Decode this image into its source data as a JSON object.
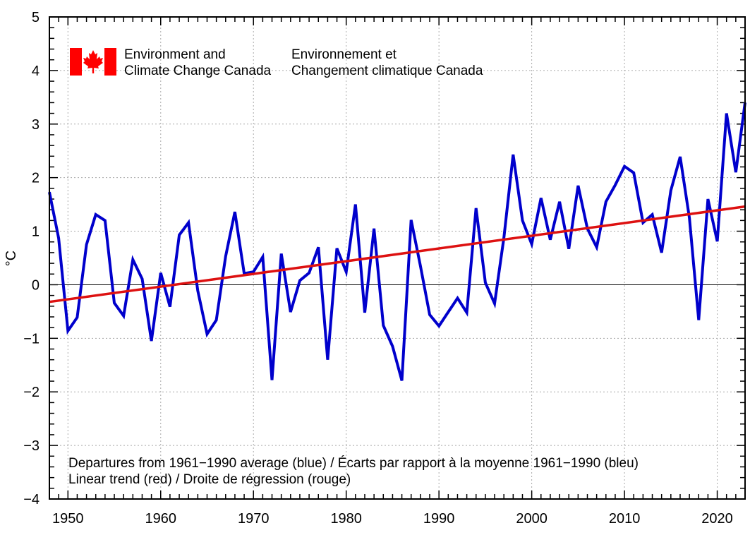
{
  "chart_data": {
    "type": "line",
    "title": "",
    "xlabel": "",
    "ylabel": "°C",
    "xlim": [
      1948,
      2023
    ],
    "ylim": [
      -4,
      5
    ],
    "x_ticks": [
      1950,
      1960,
      1970,
      1980,
      1990,
      2000,
      2010,
      2020
    ],
    "x_tick_labels": [
      "1950",
      "1960",
      "1970",
      "1980",
      "1990",
      "2000",
      "2010",
      "2020"
    ],
    "y_ticks": [
      -4,
      -3,
      -2,
      -1,
      0,
      1,
      2,
      3,
      4,
      5
    ],
    "y_tick_labels": [
      "−4",
      "−3",
      "−2",
      "−1",
      "0",
      "1",
      "2",
      "3",
      "4",
      "5"
    ],
    "grid": true,
    "zero_line": true,
    "series": [
      {
        "name": "Departures from 1961−1990 average",
        "color": "#0000cc",
        "x": [
          1948,
          1949,
          1950,
          1951,
          1952,
          1953,
          1954,
          1955,
          1956,
          1957,
          1958,
          1959,
          1960,
          1961,
          1962,
          1963,
          1964,
          1965,
          1966,
          1967,
          1968,
          1969,
          1970,
          1971,
          1972,
          1973,
          1974,
          1975,
          1976,
          1977,
          1978,
          1979,
          1980,
          1981,
          1982,
          1983,
          1984,
          1985,
          1986,
          1987,
          1988,
          1989,
          1990,
          1991,
          1992,
          1993,
          1994,
          1995,
          1996,
          1997,
          1998,
          1999,
          2000,
          2001,
          2002,
          2003,
          2004,
          2005,
          2006,
          2007,
          2008,
          2009,
          2010,
          2011,
          2012,
          2013,
          2014,
          2015,
          2016,
          2017,
          2018,
          2019,
          2020,
          2021,
          2022,
          2023
        ],
        "values": [
          1.73,
          0.87,
          -0.86,
          -0.61,
          0.75,
          1.31,
          1.2,
          -0.34,
          -0.58,
          0.47,
          0.11,
          -1.05,
          0.22,
          -0.41,
          0.93,
          1.16,
          -0.11,
          -0.92,
          -0.66,
          0.53,
          1.36,
          0.21,
          0.24,
          0.52,
          -1.78,
          0.58,
          -0.51,
          0.08,
          0.22,
          0.7,
          -1.4,
          0.68,
          0.24,
          1.5,
          -0.52,
          1.05,
          -0.76,
          -1.15,
          -1.79,
          1.21,
          0.35,
          -0.56,
          -0.77,
          -0.51,
          -0.25,
          -0.52,
          1.43,
          0.04,
          -0.35,
          0.88,
          2.43,
          1.2,
          0.76,
          1.62,
          0.84,
          1.55,
          0.67,
          1.85,
          1.05,
          0.7,
          1.55,
          1.86,
          2.21,
          2.09,
          1.16,
          1.31,
          0.6,
          1.76,
          2.39,
          1.25,
          -0.66,
          1.6,
          0.81,
          3.2,
          2.1,
          3.4
        ]
      },
      {
        "name": "Linear trend",
        "color": "#dd1111",
        "x": [
          1948,
          2023
        ],
        "values": [
          -0.32,
          1.46
        ]
      }
    ],
    "annotations": [
      "Departures from 1961−1990 average (blue) / Écarts par rapport à la moyenne 1961−1990 (bleu)",
      "Linear trend (red) / Droite de régression (rouge)"
    ]
  },
  "logo": {
    "flag_color": "#ff0000",
    "en_line1": "Environment and",
    "en_line2": "Climate Change Canada",
    "fr_line1": "Environnement et",
    "fr_line2": "Changement climatique Canada"
  }
}
